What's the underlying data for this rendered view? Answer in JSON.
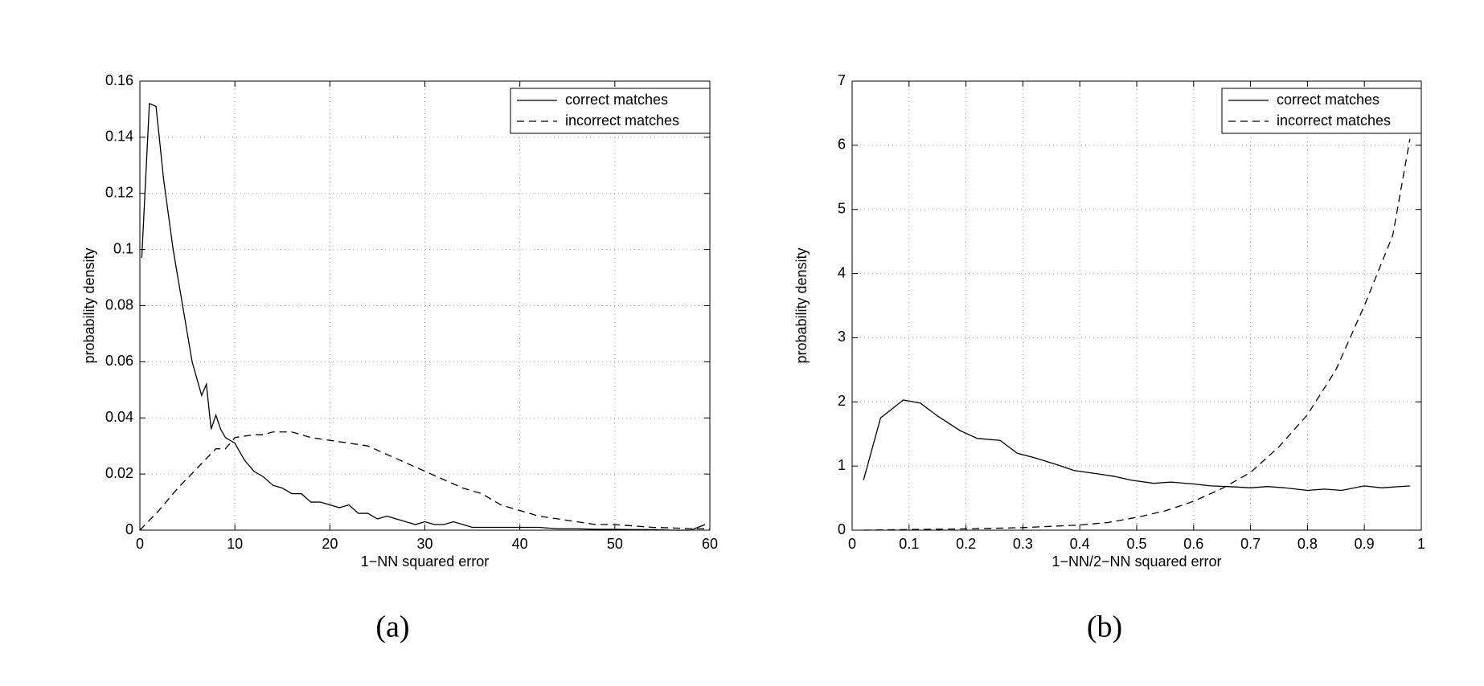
{
  "chart_data": [
    {
      "type": "line",
      "caption": "(a)",
      "xlabel": "1−NN squared error",
      "ylabel": "probability density",
      "xlim": [
        0,
        60
      ],
      "xticks": [
        0,
        10,
        20,
        30,
        40,
        50,
        60
      ],
      "ylim": [
        0,
        0.16
      ],
      "yticks": [
        0,
        0.02,
        0.04,
        0.06,
        0.08,
        0.1,
        0.12,
        0.14,
        0.16
      ],
      "grid": true,
      "legend": "upper right",
      "series": [
        {
          "name": "correct matches",
          "color": "#000000",
          "linestyle": "solid",
          "x": [
            0.2,
            1,
            1.7,
            2.5,
            3.5,
            4.5,
            5.5,
            6.5,
            7,
            7.5,
            8,
            8.5,
            9,
            10,
            11,
            12,
            13,
            14,
            15,
            16,
            17,
            18,
            19,
            20,
            21,
            22,
            23,
            24,
            25,
            26,
            27,
            28,
            29,
            30,
            31,
            32,
            33,
            34,
            35,
            36,
            38,
            40,
            42,
            44,
            46,
            48,
            50,
            52,
            54,
            56,
            58,
            59.5
          ],
          "values": [
            0.097,
            0.152,
            0.151,
            0.125,
            0.1,
            0.08,
            0.06,
            0.048,
            0.052,
            0.036,
            0.041,
            0.036,
            0.033,
            0.031,
            0.025,
            0.021,
            0.019,
            0.016,
            0.015,
            0.013,
            0.013,
            0.01,
            0.01,
            0.009,
            0.008,
            0.009,
            0.006,
            0.006,
            0.004,
            0.005,
            0.004,
            0.003,
            0.002,
            0.003,
            0.002,
            0.002,
            0.003,
            0.002,
            0.001,
            0.001,
            0.001,
            0.001,
            0.001,
            0.0005,
            0.0005,
            0.0003,
            0.0003,
            0.0002,
            0.0002,
            0,
            0,
            0.002
          ]
        },
        {
          "name": "incorrect matches",
          "color": "#000000",
          "linestyle": "dashed",
          "x": [
            0,
            2,
            4,
            6,
            8,
            9,
            10,
            12,
            13,
            14,
            16,
            18,
            20,
            22,
            24,
            26,
            28,
            30,
            32,
            34,
            36,
            38,
            40,
            42,
            44,
            46,
            48,
            50,
            52,
            54,
            56,
            58,
            60
          ],
          "values": [
            0,
            0.007,
            0.015,
            0.022,
            0.029,
            0.029,
            0.033,
            0.034,
            0.034,
            0.035,
            0.035,
            0.033,
            0.032,
            0.031,
            0.03,
            0.027,
            0.024,
            0.021,
            0.018,
            0.015,
            0.013,
            0.009,
            0.007,
            0.005,
            0.004,
            0.003,
            0.002,
            0.002,
            0.0015,
            0.001,
            0.0008,
            0.0005,
            0.0005
          ]
        }
      ]
    },
    {
      "type": "line",
      "caption": "(b)",
      "xlabel": "1−NN/2−NN squared error",
      "ylabel": "probability density",
      "xlim": [
        0,
        1
      ],
      "xticks": [
        0,
        0.1,
        0.2,
        0.3,
        0.4,
        0.5,
        0.6,
        0.7,
        0.8,
        0.9,
        1
      ],
      "ylim": [
        0,
        7
      ],
      "yticks": [
        0,
        1,
        2,
        3,
        4,
        5,
        6,
        7
      ],
      "grid": true,
      "legend": "upper right",
      "series": [
        {
          "name": "correct matches",
          "color": "#000000",
          "linestyle": "solid",
          "x": [
            0.02,
            0.05,
            0.09,
            0.12,
            0.15,
            0.19,
            0.22,
            0.26,
            0.29,
            0.32,
            0.36,
            0.39,
            0.43,
            0.46,
            0.49,
            0.53,
            0.56,
            0.6,
            0.63,
            0.66,
            0.7,
            0.73,
            0.76,
            0.8,
            0.83,
            0.86,
            0.9,
            0.93,
            0.98
          ],
          "values": [
            0.78,
            1.75,
            2.03,
            1.98,
            1.78,
            1.55,
            1.43,
            1.4,
            1.2,
            1.13,
            1.02,
            0.93,
            0.88,
            0.84,
            0.78,
            0.73,
            0.75,
            0.72,
            0.69,
            0.68,
            0.66,
            0.68,
            0.66,
            0.62,
            0.64,
            0.62,
            0.69,
            0.66,
            0.69
          ]
        },
        {
          "name": "incorrect matches",
          "color": "#000000",
          "linestyle": "dashed",
          "x": [
            0.02,
            0.1,
            0.2,
            0.3,
            0.4,
            0.45,
            0.5,
            0.55,
            0.6,
            0.65,
            0.7,
            0.75,
            0.8,
            0.85,
            0.9,
            0.95,
            0.98
          ],
          "values": [
            0,
            0.01,
            0.02,
            0.04,
            0.08,
            0.12,
            0.2,
            0.3,
            0.45,
            0.65,
            0.9,
            1.3,
            1.8,
            2.5,
            3.5,
            4.6,
            6.1
          ]
        }
      ]
    }
  ]
}
